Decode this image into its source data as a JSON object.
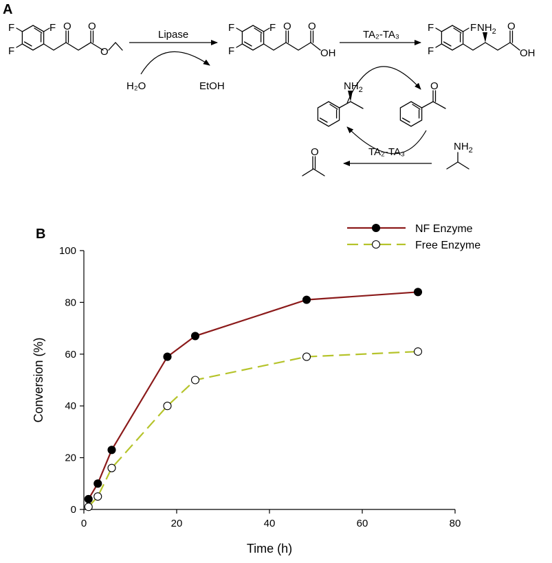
{
  "panel_a": {
    "label": "A",
    "atoms": {
      "F": "F",
      "O": "O",
      "OH": "OH",
      "NH2": "NH",
      "NH2_sub": "2"
    },
    "step1": {
      "above": "Lipase",
      "left_reagent": "H₂O",
      "right_product": "EtOH"
    },
    "step2": {
      "above": "TA₂-TA₃"
    },
    "recycle": {
      "label": "TA₂-TA₃"
    }
  },
  "panel_b": {
    "label": "B"
  },
  "chart_data": {
    "type": "line",
    "xlabel": "Time (h)",
    "ylabel": "Conversion (%)",
    "xlim": [
      0,
      80
    ],
    "ylim": [
      0,
      100
    ],
    "x_ticks": [
      0,
      20,
      40,
      60,
      80
    ],
    "y_ticks": [
      0,
      20,
      40,
      60,
      80,
      100
    ],
    "grid": false,
    "legend_position": "top-right",
    "series": [
      {
        "name": "NF Enzyme",
        "color": "#8b1a1a",
        "marker": "filled-circle",
        "line_style": "solid",
        "x": [
          1,
          3,
          6,
          18,
          24,
          48,
          72
        ],
        "y": [
          4,
          10,
          23,
          59,
          67,
          81,
          84
        ]
      },
      {
        "name": "Free Enzyme",
        "color": "#b5c32a",
        "marker": "open-circle",
        "line_style": "dashed",
        "x": [
          1,
          3,
          6,
          18,
          24,
          48,
          72
        ],
        "y": [
          1,
          5,
          16,
          40,
          50,
          59,
          61
        ]
      }
    ]
  }
}
